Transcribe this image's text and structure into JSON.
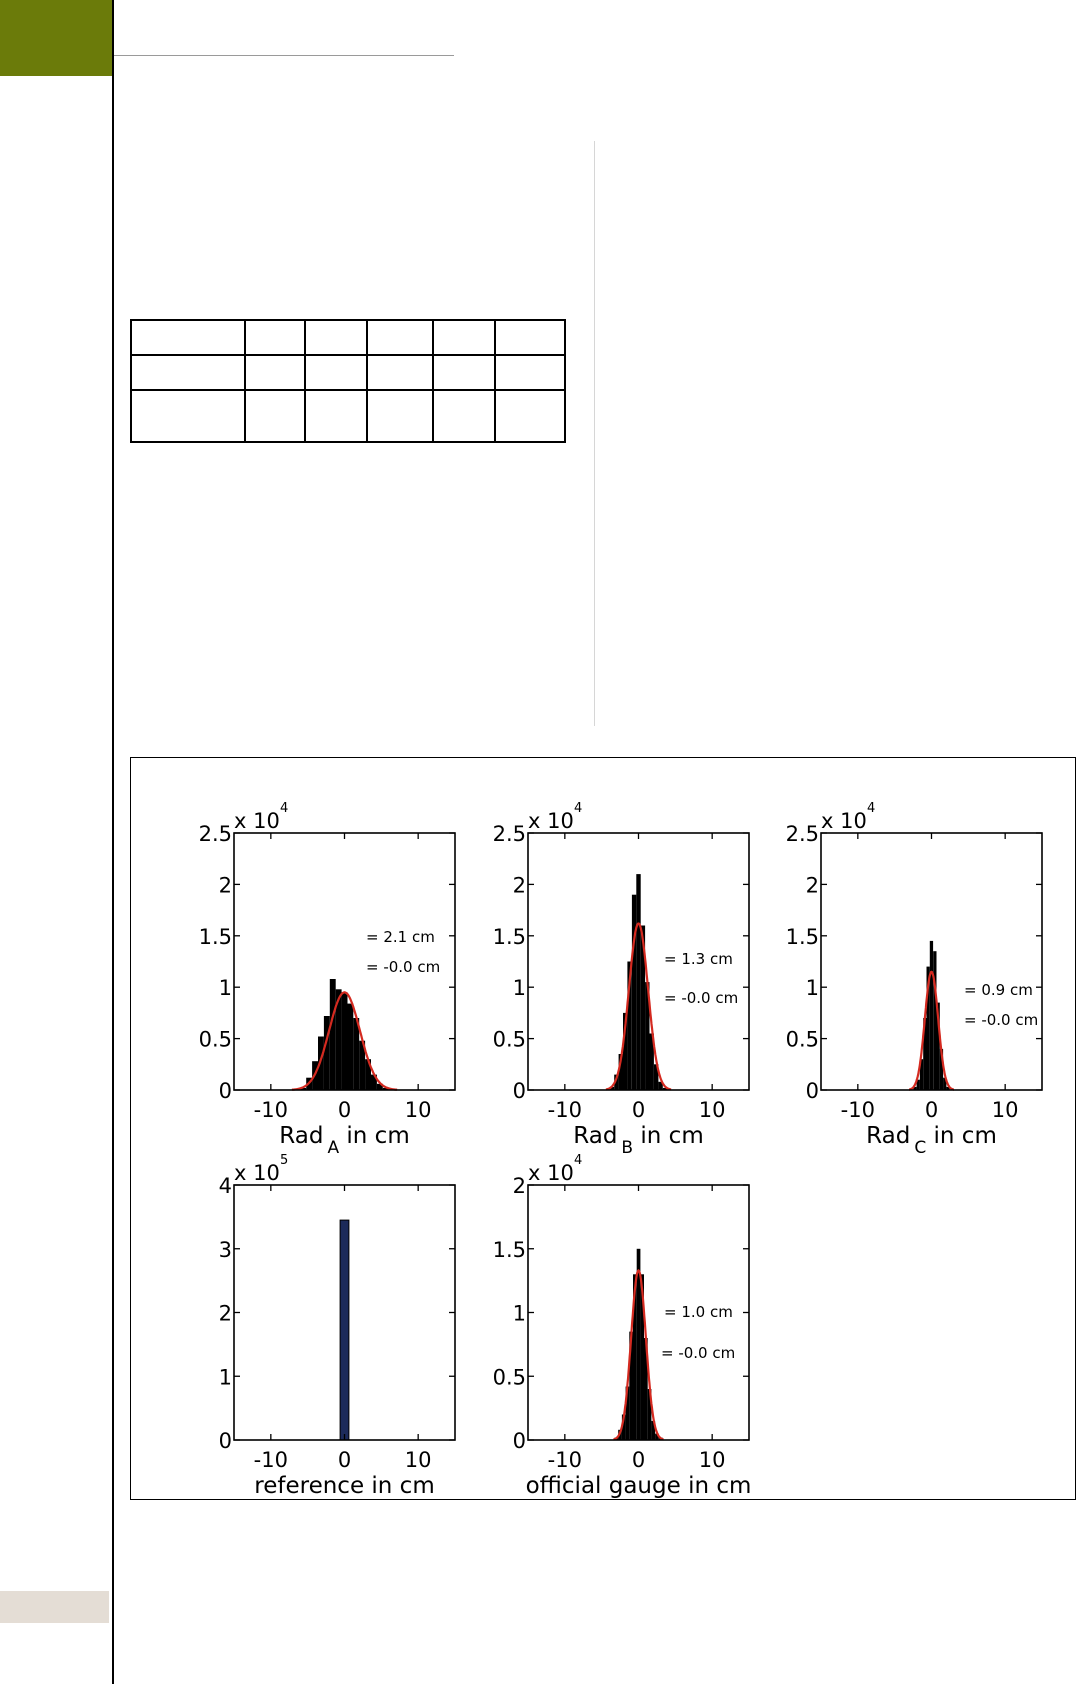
{
  "colors": {
    "accent_green": "#6b7b0a",
    "footer_tab": "#e4ddd5",
    "histogram_fill": "#000000",
    "fit_curve": "#d42a20",
    "reference_bar": "#1c2a5a"
  },
  "chart_data": [
    {
      "type": "histogram",
      "xlabel": "Rad",
      "xlabel_sub": "A",
      "xlabel_suffix": " in cm",
      "xlim": [
        -15,
        15
      ],
      "ylim": [
        0,
        2.5
      ],
      "xticks": [
        "-10",
        "0",
        "10"
      ],
      "yticks": [
        "0",
        "0.5",
        "1",
        "1.5",
        "2",
        "2.5"
      ],
      "y_multiplier": {
        "base": "x 10",
        "exp": "4"
      },
      "annotations": [
        "= 2.1 cm",
        "= -0.0 cm"
      ],
      "bin_width": 0.8,
      "bins_x": [
        -5.6,
        -4.8,
        -4.0,
        -3.2,
        -2.4,
        -1.6,
        -0.8,
        0.0,
        0.8,
        1.6,
        2.4,
        3.2,
        4.0,
        4.8,
        5.6
      ],
      "bins_y": [
        0.02,
        0.12,
        0.28,
        0.52,
        0.72,
        1.08,
        0.98,
        0.95,
        0.84,
        0.7,
        0.48,
        0.3,
        0.15,
        0.06,
        0.02
      ],
      "fit": {
        "mean": 0.0,
        "sigma": 2.1,
        "peak": 0.95
      }
    },
    {
      "type": "histogram",
      "xlabel": "Rad",
      "xlabel_sub": "B",
      "xlabel_suffix": " in cm",
      "xlim": [
        -15,
        15
      ],
      "ylim": [
        0,
        2.5
      ],
      "xticks": [
        "-10",
        "0",
        "10"
      ],
      "yticks": [
        "0",
        "0.5",
        "1",
        "1.5",
        "2",
        "2.5"
      ],
      "y_multiplier": {
        "base": "x 10",
        "exp": "4"
      },
      "annotations": [
        "= 1.3 cm",
        "= -0.0 cm"
      ],
      "bin_width": 0.6,
      "bins_x": [
        -3.6,
        -3.0,
        -2.4,
        -1.8,
        -1.2,
        -0.6,
        0.0,
        0.6,
        1.2,
        1.8,
        2.4,
        3.0,
        3.6
      ],
      "bins_y": [
        0.03,
        0.15,
        0.35,
        0.75,
        1.25,
        1.9,
        2.1,
        1.6,
        1.05,
        0.55,
        0.25,
        0.08,
        0.02
      ],
      "fit": {
        "mean": 0.0,
        "sigma": 1.3,
        "peak": 1.62
      }
    },
    {
      "type": "histogram",
      "xlabel": "Rad",
      "xlabel_sub": "C",
      "xlabel_suffix": " in cm",
      "xlim": [
        -15,
        15
      ],
      "ylim": [
        0,
        2.5
      ],
      "xticks": [
        "-10",
        "0",
        "10"
      ],
      "yticks": [
        "0",
        "0.5",
        "1",
        "1.5",
        "2",
        "2.5"
      ],
      "y_multiplier": {
        "base": "x 10",
        "exp": "4"
      },
      "annotations": [
        "= 0.9 cm",
        "= -0.0 cm"
      ],
      "bin_width": 0.45,
      "bins_x": [
        -2.25,
        -1.8,
        -1.35,
        -0.9,
        -0.45,
        0.0,
        0.45,
        0.9,
        1.35,
        1.8,
        2.25
      ],
      "bins_y": [
        0.03,
        0.1,
        0.3,
        0.7,
        1.2,
        1.45,
        1.35,
        0.85,
        0.4,
        0.12,
        0.03
      ],
      "fit": {
        "mean": 0.0,
        "sigma": 0.9,
        "peak": 1.15
      }
    },
    {
      "type": "bar",
      "xlabel": "reference in cm",
      "xlabel_sub": "",
      "xlabel_suffix": "",
      "xlim": [
        -15,
        15
      ],
      "ylim": [
        0,
        4
      ],
      "xticks": [
        "-10",
        "0",
        "10"
      ],
      "yticks": [
        "0",
        "1",
        "2",
        "3",
        "4"
      ],
      "y_multiplier": {
        "base": "x 10",
        "exp": "5"
      },
      "annotations": [],
      "bin_width": 1.2,
      "bins_x": [
        0.0
      ],
      "bins_y": [
        3.45
      ],
      "fit": null
    },
    {
      "type": "histogram",
      "xlabel": "official gauge in cm",
      "xlabel_sub": "",
      "xlabel_suffix": "",
      "xlim": [
        -15,
        15
      ],
      "ylim": [
        0,
        2
      ],
      "xticks": [
        "-10",
        "0",
        "10"
      ],
      "yticks": [
        "0",
        "0.5",
        "1",
        "1.5",
        "2"
      ],
      "y_multiplier": {
        "base": "x 10",
        "exp": "4"
      },
      "annotations": [
        "= 1.0 cm",
        "= -0.0 cm"
      ],
      "bin_width": 0.5,
      "bins_x": [
        -3.0,
        -2.5,
        -2.0,
        -1.5,
        -1.0,
        -0.5,
        0.0,
        0.5,
        1.0,
        1.5,
        2.0,
        2.5,
        3.0
      ],
      "bins_y": [
        0.02,
        0.08,
        0.2,
        0.42,
        0.85,
        1.3,
        1.5,
        1.3,
        0.8,
        0.4,
        0.15,
        0.05,
        0.02
      ],
      "fit": {
        "mean": 0.0,
        "sigma": 1.0,
        "peak": 1.33
      }
    }
  ]
}
